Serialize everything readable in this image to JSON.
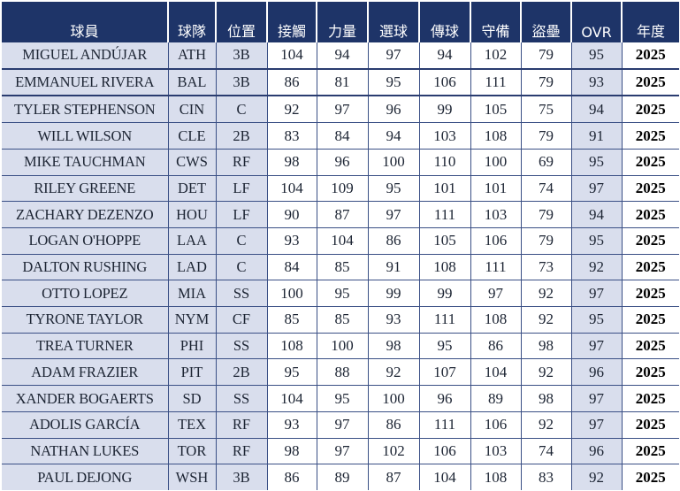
{
  "columns": [
    "球員",
    "球隊",
    "位置",
    "接觸",
    "力量",
    "選球",
    "傳球",
    "守備",
    "盜壘",
    "OVR",
    "年度"
  ],
  "rows": [
    {
      "player": "MIGUEL ANDÚJAR",
      "team": "ATH",
      "pos": "3B",
      "contact": "104",
      "power": "94",
      "eye": "97",
      "arm": "94",
      "field": "102",
      "speed": "79",
      "ovr": "95",
      "year": "2025"
    },
    {
      "player": "EMMANUEL RIVERA",
      "team": "BAL",
      "pos": "3B",
      "contact": "86",
      "power": "81",
      "eye": "95",
      "arm": "106",
      "field": "111",
      "speed": "79",
      "ovr": "93",
      "year": "2025"
    },
    {
      "player": "TYLER STEPHENSON",
      "team": "CIN",
      "pos": "C",
      "contact": "92",
      "power": "97",
      "eye": "96",
      "arm": "99",
      "field": "105",
      "speed": "75",
      "ovr": "94",
      "year": "2025"
    },
    {
      "player": "WILL WILSON",
      "team": "CLE",
      "pos": "2B",
      "contact": "83",
      "power": "84",
      "eye": "94",
      "arm": "103",
      "field": "108",
      "speed": "79",
      "ovr": "91",
      "year": "2025"
    },
    {
      "player": "MIKE TAUCHMAN",
      "team": "CWS",
      "pos": "RF",
      "contact": "98",
      "power": "96",
      "eye": "100",
      "arm": "110",
      "field": "100",
      "speed": "69",
      "ovr": "95",
      "year": "2025"
    },
    {
      "player": "RILEY GREENE",
      "team": "DET",
      "pos": "LF",
      "contact": "104",
      "power": "109",
      "eye": "95",
      "arm": "101",
      "field": "101",
      "speed": "74",
      "ovr": "97",
      "year": "2025"
    },
    {
      "player": "ZACHARY DEZENZO",
      "team": "HOU",
      "pos": "LF",
      "contact": "90",
      "power": "87",
      "eye": "97",
      "arm": "111",
      "field": "103",
      "speed": "79",
      "ovr": "94",
      "year": "2025"
    },
    {
      "player": "LOGAN O'HOPPE",
      "team": "LAA",
      "pos": "C",
      "contact": "93",
      "power": "104",
      "eye": "86",
      "arm": "105",
      "field": "106",
      "speed": "79",
      "ovr": "95",
      "year": "2025"
    },
    {
      "player": "DALTON RUSHING",
      "team": "LAD",
      "pos": "C",
      "contact": "84",
      "power": "85",
      "eye": "91",
      "arm": "108",
      "field": "111",
      "speed": "73",
      "ovr": "92",
      "year": "2025"
    },
    {
      "player": "OTTO LOPEZ",
      "team": "MIA",
      "pos": "SS",
      "contact": "100",
      "power": "95",
      "eye": "99",
      "arm": "99",
      "field": "97",
      "speed": "92",
      "ovr": "97",
      "year": "2025"
    },
    {
      "player": "TYRONE TAYLOR",
      "team": "NYM",
      "pos": "CF",
      "contact": "85",
      "power": "85",
      "eye": "93",
      "arm": "111",
      "field": "108",
      "speed": "92",
      "ovr": "95",
      "year": "2025"
    },
    {
      "player": "TREA TURNER",
      "team": "PHI",
      "pos": "SS",
      "contact": "108",
      "power": "100",
      "eye": "98",
      "arm": "95",
      "field": "86",
      "speed": "98",
      "ovr": "97",
      "year": "2025"
    },
    {
      "player": "ADAM FRAZIER",
      "team": "PIT",
      "pos": "2B",
      "contact": "95",
      "power": "88",
      "eye": "92",
      "arm": "107",
      "field": "104",
      "speed": "92",
      "ovr": "96",
      "year": "2025"
    },
    {
      "player": "XANDER BOGAERTS",
      "team": "SD",
      "pos": "SS",
      "contact": "104",
      "power": "95",
      "eye": "100",
      "arm": "96",
      "field": "89",
      "speed": "98",
      "ovr": "97",
      "year": "2025"
    },
    {
      "player": "ADOLIS GARCÍA",
      "team": "TEX",
      "pos": "RF",
      "contact": "93",
      "power": "97",
      "eye": "86",
      "arm": "111",
      "field": "106",
      "speed": "92",
      "ovr": "97",
      "year": "2025"
    },
    {
      "player": "NATHAN LUKES",
      "team": "TOR",
      "pos": "RF",
      "contact": "98",
      "power": "97",
      "eye": "102",
      "arm": "106",
      "field": "103",
      "speed": "74",
      "ovr": "96",
      "year": "2025"
    },
    {
      "player": "PAUL DEJONG",
      "team": "WSH",
      "pos": "3B",
      "contact": "86",
      "power": "89",
      "eye": "87",
      "arm": "104",
      "field": "108",
      "speed": "83",
      "ovr": "92",
      "year": "2025"
    }
  ],
  "colors": {
    "header_bg": "#1e3468",
    "header_text": "#ffffff",
    "shaded_cell": "#d9deed",
    "grid": "#3a4f85"
  }
}
